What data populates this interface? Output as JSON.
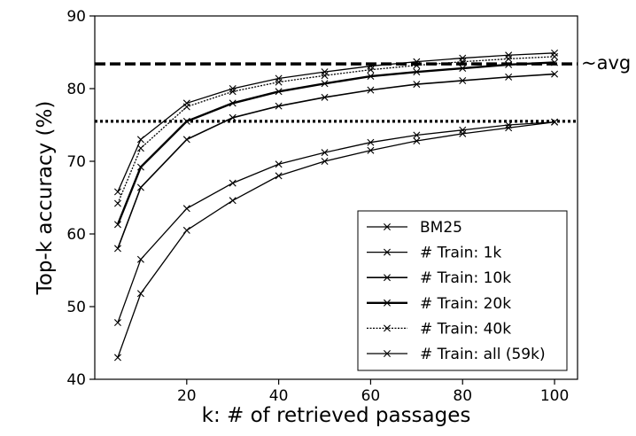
{
  "chart_data": {
    "type": "line",
    "xlabel": "k: # of retrieved passages",
    "ylabel": "Top-k accuracy (%)",
    "xlim": [
      0,
      105
    ],
    "ylim": [
      40,
      90
    ],
    "xticks": [
      20,
      40,
      60,
      80,
      100
    ],
    "yticks": [
      40,
      50,
      60,
      70,
      80,
      90
    ],
    "grid": false,
    "legend_position": "lower-right",
    "x": [
      5,
      10,
      20,
      30,
      40,
      50,
      60,
      70,
      80,
      90,
      100
    ],
    "series": [
      {
        "name": "BM25",
        "values": [
          47.8,
          56.5,
          63.5,
          67.0,
          69.6,
          71.2,
          72.6,
          73.6,
          74.3,
          75.0,
          75.4
        ]
      },
      {
        "name": "# Train: 1k",
        "values": [
          43.0,
          51.8,
          60.5,
          64.6,
          68.0,
          70.0,
          71.5,
          72.8,
          73.8,
          74.6,
          75.4
        ]
      },
      {
        "name": "# Train: 10k",
        "values": [
          58.0,
          66.4,
          73.0,
          76.0,
          77.6,
          78.8,
          79.8,
          80.6,
          81.1,
          81.6,
          82.0
        ]
      },
      {
        "name": "# Train: 20k",
        "values": [
          61.3,
          69.2,
          75.5,
          78.0,
          79.6,
          80.7,
          81.7,
          82.3,
          82.8,
          83.3,
          83.6
        ]
      },
      {
        "name": "# Train: 40k",
        "values": [
          64.2,
          71.8,
          77.5,
          79.6,
          80.9,
          81.8,
          82.6,
          83.2,
          83.7,
          84.1,
          84.4
        ]
      },
      {
        "name": "# Train: all (59k)",
        "values": [
          65.8,
          73.0,
          78.0,
          80.0,
          81.4,
          82.3,
          83.1,
          83.7,
          84.2,
          84.6,
          84.9
        ]
      }
    ],
    "reference_lines": [
      {
        "y": 83.4,
        "style": "dashed"
      },
      {
        "y": 75.5,
        "style": "dotted"
      }
    ],
    "annotation": "~avg"
  }
}
